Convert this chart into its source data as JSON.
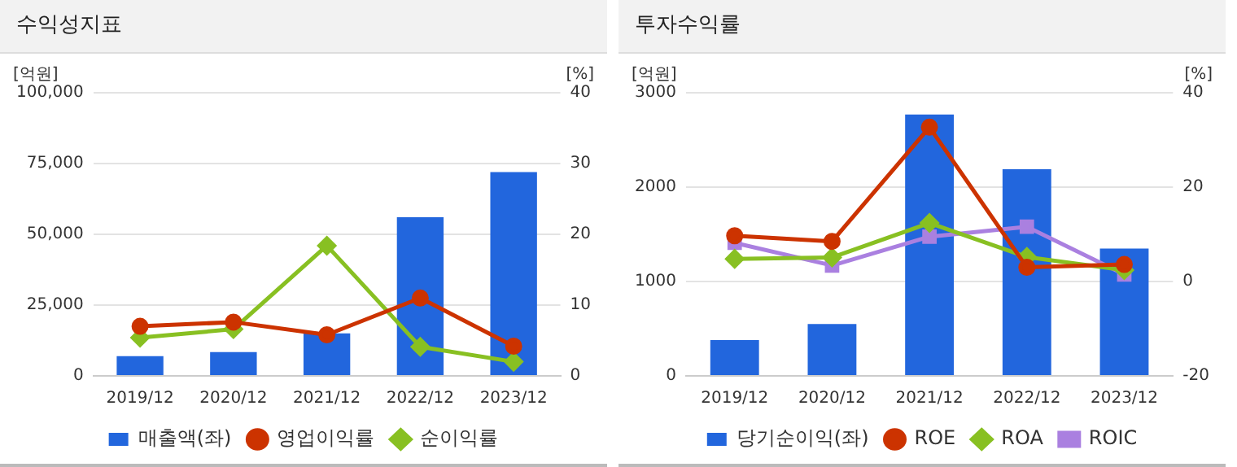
{
  "chart_data": [
    {
      "type": "bar",
      "title": "수익성지표",
      "ylabel": "[억원]",
      "y2label": "[%]",
      "categories": [
        "2019/12",
        "2020/12",
        "2021/12",
        "2022/12",
        "2023/12"
      ],
      "series": [
        {
          "name": "매출액(좌)",
          "color": "#2266dd",
          "values": [
            7000,
            8400,
            15000,
            56000,
            72000
          ]
        },
        {
          "name": "영업이익률",
          "type": "line",
          "axis": "y2",
          "marker": "circle",
          "color": "#cc3300",
          "values": [
            7.0,
            7.6,
            5.8,
            11.0,
            4.2
          ]
        },
        {
          "name": "순이익률",
          "type": "line",
          "axis": "y2",
          "marker": "diamond",
          "color": "#88c022",
          "values": [
            5.4,
            6.6,
            18.4,
            4.1,
            2.0
          ]
        }
      ],
      "ylim": [
        0,
        100000
      ],
      "yticks": [
        0,
        {
          "value": 25000,
          "label": "25,000"
        },
        {
          "value": 50000,
          "label": "50,000"
        },
        {
          "value": 75000,
          "label": "75,000"
        },
        {
          "value": 100000,
          "label": "100,000"
        }
      ],
      "y2lim": [
        0,
        40
      ],
      "y2ticks": [
        0,
        10,
        20,
        30,
        40
      ],
      "grid": "y",
      "legend": "bottom"
    },
    {
      "type": "bar",
      "title": "투자수익률",
      "ylabel": "[억원]",
      "y2label": "[%]",
      "categories": [
        "2019/12",
        "2020/12",
        "2021/12",
        "2022/12",
        "2023/12"
      ],
      "series": [
        {
          "name": "당기순이익(좌)",
          "color": "#2266dd",
          "values": [
            380,
            550,
            2770,
            2190,
            1350
          ]
        },
        {
          "name": "ROE",
          "type": "line",
          "axis": "y2",
          "marker": "circle",
          "color": "#cc3300",
          "values": [
            9.7,
            8.5,
            32.7,
            3.0,
            3.6
          ]
        },
        {
          "name": "ROA",
          "type": "line",
          "axis": "y2",
          "marker": "diamond",
          "color": "#88c022",
          "values": [
            4.8,
            5.1,
            12.4,
            5.2,
            2.4
          ]
        },
        {
          "name": "ROIC",
          "type": "line",
          "axis": "y2",
          "marker": "square",
          "color": "#aa80e0",
          "values": [
            8.2,
            3.4,
            9.5,
            11.6,
            1.5
          ]
        }
      ],
      "ylim": [
        0,
        3000
      ],
      "yticks": [
        0,
        1000,
        2000,
        3000
      ],
      "y2lim": [
        -20,
        40
      ],
      "y2ticks": [
        -20,
        0,
        20,
        40
      ],
      "grid": "y",
      "legend": "bottom"
    }
  ]
}
